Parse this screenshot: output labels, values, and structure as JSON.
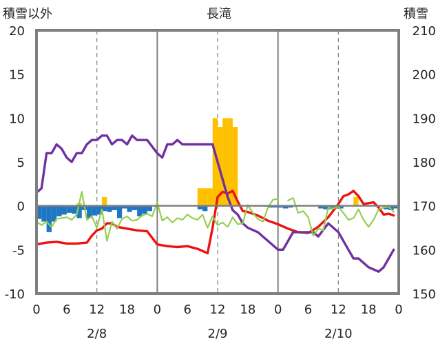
{
  "chart_data": {
    "type": "bar+line",
    "title": "長滝",
    "left_axis_label": "積雪以外",
    "right_axis_label": "積雪",
    "left_axis": {
      "min": -10,
      "max": 20,
      "ticks": [
        20,
        15,
        10,
        5,
        0,
        -5,
        -10
      ]
    },
    "right_axis": {
      "min": 150,
      "max": 210,
      "ticks": [
        210,
        200,
        190,
        180,
        170,
        160,
        150
      ]
    },
    "hour_ticks": [
      "0",
      "6",
      "12",
      "18",
      "0",
      "6",
      "12",
      "18",
      "0",
      "6",
      "12",
      "18",
      "0"
    ],
    "dates": [
      {
        "label": "2/8",
        "center_hour": 12
      },
      {
        "label": "2/9",
        "center_hour": 36
      },
      {
        "label": "2/10",
        "center_hour": 60
      }
    ],
    "x_range_hours": [
      0,
      72
    ],
    "colors": {
      "red": "#ee1111",
      "purple": "#7030a0",
      "green": "#92d050",
      "orange": "#ffc000",
      "blue": "#1f77c4",
      "axis": "#7f7f7f",
      "grid": "#7f7f7f"
    },
    "series": [
      {
        "color": "red",
        "axis": "left",
        "points": [
          [
            0,
            -4.4
          ],
          [
            2,
            -4.2
          ],
          [
            4,
            -4.1
          ],
          [
            6,
            -4.3
          ],
          [
            8,
            -4.3
          ],
          [
            10,
            -4.2
          ],
          [
            11,
            -3.4
          ],
          [
            12,
            -2.8
          ],
          [
            13,
            -2.6
          ],
          [
            14,
            -2.0
          ],
          [
            15,
            -2.0
          ],
          [
            16,
            -2.4
          ],
          [
            18,
            -2.6
          ],
          [
            20,
            -2.8
          ],
          [
            22,
            -2.9
          ],
          [
            24,
            -4.4
          ],
          [
            26,
            -4.6
          ],
          [
            28,
            -4.7
          ],
          [
            30,
            -4.6
          ],
          [
            32,
            -4.9
          ],
          [
            34,
            -5.4
          ],
          [
            35,
            -2.5
          ],
          [
            36,
            1.0
          ],
          [
            37,
            1.6
          ],
          [
            38,
            1.4
          ],
          [
            39,
            1.7
          ],
          [
            40,
            0.5
          ],
          [
            41,
            -0.6
          ],
          [
            42,
            -0.7
          ],
          [
            44,
            -1.1
          ],
          [
            46,
            -1.7
          ],
          [
            48,
            -2.1
          ],
          [
            50,
            -2.6
          ],
          [
            52,
            -3.0
          ],
          [
            54,
            -3.1
          ],
          [
            56,
            -2.4
          ],
          [
            58,
            -1.3
          ],
          [
            60,
            0.2
          ],
          [
            61,
            1.1
          ],
          [
            62,
            1.3
          ],
          [
            63,
            1.7
          ],
          [
            64,
            1.1
          ],
          [
            65,
            0.2
          ],
          [
            66,
            0.3
          ],
          [
            67,
            0.4
          ],
          [
            68,
            -0.2
          ],
          [
            69,
            -1.0
          ],
          [
            70,
            -0.9
          ],
          [
            71,
            -1.1
          ]
        ]
      },
      {
        "color": "purple",
        "axis": "right",
        "points": [
          [
            0,
            173
          ],
          [
            1,
            174
          ],
          [
            2,
            182
          ],
          [
            3,
            182
          ],
          [
            4,
            184
          ],
          [
            5,
            183
          ],
          [
            6,
            181
          ],
          [
            7,
            180
          ],
          [
            8,
            182
          ],
          [
            9,
            182
          ],
          [
            10,
            184
          ],
          [
            11,
            185
          ],
          [
            12,
            185
          ],
          [
            13,
            186
          ],
          [
            14,
            186
          ],
          [
            15,
            184
          ],
          [
            16,
            185
          ],
          [
            17,
            185
          ],
          [
            18,
            184
          ],
          [
            19,
            186
          ],
          [
            20,
            185
          ],
          [
            22,
            185
          ],
          [
            24,
            182
          ],
          [
            25,
            181
          ],
          [
            26,
            184
          ],
          [
            27,
            184
          ],
          [
            28,
            185
          ],
          [
            29,
            184
          ],
          [
            32,
            184
          ],
          [
            34,
            184
          ],
          [
            35,
            184
          ],
          [
            36,
            180
          ],
          [
            37,
            176
          ],
          [
            38,
            172
          ],
          [
            39,
            169
          ],
          [
            40,
            168
          ],
          [
            41,
            166
          ],
          [
            42,
            165
          ],
          [
            44,
            164
          ],
          [
            46,
            162
          ],
          [
            48,
            160
          ],
          [
            49,
            160
          ],
          [
            50,
            162
          ],
          [
            51,
            164
          ],
          [
            53,
            164
          ],
          [
            55,
            164
          ],
          [
            56,
            163
          ],
          [
            58,
            166
          ],
          [
            60,
            164
          ],
          [
            62,
            160
          ],
          [
            63,
            158
          ],
          [
            64,
            158
          ],
          [
            66,
            156
          ],
          [
            68,
            155
          ],
          [
            69,
            156
          ],
          [
            70,
            158
          ],
          [
            71,
            160
          ]
        ]
      },
      {
        "color": "green",
        "axis": "left",
        "points": [
          [
            0,
            -1.8
          ],
          [
            1,
            -2.2
          ],
          [
            2,
            -1.8
          ],
          [
            3,
            -2.4
          ],
          [
            4,
            -1.5
          ],
          [
            5,
            -1.4
          ],
          [
            6,
            -1.3
          ],
          [
            7,
            -1.6
          ],
          [
            8,
            -1.0
          ],
          [
            9,
            1.6
          ],
          [
            10,
            -1.6
          ],
          [
            11,
            -1.2
          ],
          [
            12,
            -2.5
          ],
          [
            13,
            -0.4
          ],
          [
            14,
            -4.0
          ],
          [
            15,
            -1.8
          ],
          [
            16,
            -2.6
          ],
          [
            17,
            -1.5
          ],
          [
            18,
            -1.2
          ],
          [
            19,
            -1.7
          ],
          [
            20,
            -1.6
          ],
          [
            21,
            -1.1
          ],
          [
            22,
            -0.9
          ],
          [
            23,
            -1.2
          ],
          [
            24,
            0.4
          ],
          [
            25,
            -1.7
          ],
          [
            26,
            -1.3
          ],
          [
            27,
            -1.9
          ],
          [
            28,
            -1.4
          ],
          [
            29,
            -1.6
          ],
          [
            30,
            -1.0
          ],
          [
            31,
            -1.4
          ],
          [
            32,
            -1.6
          ],
          [
            33,
            -1.0
          ],
          [
            34,
            -2.5
          ],
          [
            35,
            -1.2
          ],
          [
            36,
            -2.2
          ],
          [
            37,
            -1.9
          ],
          [
            38,
            -2.4
          ],
          [
            39,
            -1.3
          ],
          [
            40,
            -2.1
          ],
          [
            41,
            -2.0
          ],
          [
            42,
            0.1
          ],
          [
            43,
            -0.8
          ],
          [
            44,
            -1.5
          ],
          [
            45,
            -1.8
          ],
          [
            46,
            -0.2
          ],
          [
            47,
            0.7
          ],
          [
            48,
            0.8
          ]
        ]
      },
      {
        "color": "green",
        "axis": "left",
        "points": [
          [
            50,
            0.6
          ],
          [
            51,
            0.9
          ],
          [
            52,
            -0.8
          ],
          [
            53,
            -0.6
          ],
          [
            54,
            -1.3
          ],
          [
            55,
            -3.4
          ],
          [
            56,
            -2.6
          ],
          [
            57,
            -2.8
          ],
          [
            58,
            -0.2
          ],
          [
            59,
            -0.3
          ],
          [
            60,
            -0.1
          ],
          [
            61,
            -0.8
          ],
          [
            62,
            -1.6
          ],
          [
            63,
            -1.4
          ],
          [
            64,
            -0.4
          ],
          [
            65,
            -1.6
          ],
          [
            66,
            -2.4
          ],
          [
            67,
            -1.6
          ],
          [
            68,
            -0.4
          ],
          [
            69,
            -0.2
          ],
          [
            70,
            -0.1
          ],
          [
            71,
            -0.7
          ]
        ]
      }
    ],
    "bars_orange": [
      [
        8,
        0.3
      ],
      [
        13,
        1.0
      ],
      [
        32,
        2.0
      ],
      [
        33,
        2.0
      ],
      [
        34,
        2.0
      ],
      [
        35,
        10.0
      ],
      [
        36,
        9.0
      ],
      [
        37,
        10.0
      ],
      [
        38,
        10.0
      ],
      [
        39,
        9.0
      ],
      [
        63,
        1.0
      ]
    ],
    "bars_blue": [
      [
        0,
        -1.5
      ],
      [
        1,
        -1.8
      ],
      [
        2,
        -3.0
      ],
      [
        3,
        -1.8
      ],
      [
        4,
        -1.2
      ],
      [
        5,
        -1.0
      ],
      [
        6,
        -0.8
      ],
      [
        7,
        -0.9
      ],
      [
        8,
        -1.4
      ],
      [
        9,
        -0.5
      ],
      [
        10,
        -1.4
      ],
      [
        11,
        -1.1
      ],
      [
        12,
        -1.0
      ],
      [
        13,
        -0.6
      ],
      [
        14,
        -0.7
      ],
      [
        15,
        -0.5
      ],
      [
        16,
        -1.4
      ],
      [
        17,
        -0.3
      ],
      [
        18,
        -0.7
      ],
      [
        19,
        -0.5
      ],
      [
        20,
        -1.2
      ],
      [
        21,
        -0.9
      ],
      [
        22,
        -0.6
      ],
      [
        32,
        -0.4
      ],
      [
        33,
        -0.6
      ],
      [
        45,
        -0.1
      ],
      [
        46,
        -0.2
      ],
      [
        47,
        -0.2
      ],
      [
        48,
        -0.2
      ],
      [
        49,
        -0.3
      ],
      [
        50,
        -0.2
      ],
      [
        56,
        -0.3
      ],
      [
        57,
        -0.4
      ],
      [
        58,
        -0.4
      ],
      [
        59,
        -0.3
      ],
      [
        60,
        -0.3
      ],
      [
        69,
        -0.4
      ],
      [
        70,
        -0.5
      ],
      [
        71,
        -0.3
      ]
    ],
    "grid_major_hours": [
      24,
      48
    ],
    "grid_minor_hours": [
      12,
      36,
      60
    ]
  }
}
